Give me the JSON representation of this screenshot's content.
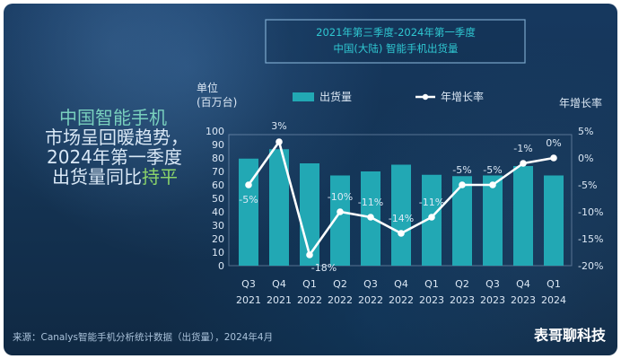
{
  "header": {
    "title_line_1": "2021年第三季度-2024年第一季度",
    "title_line_2": "中国(大陆) 智能手机出货量"
  },
  "callout": {
    "lines": [
      [
        {
          "text": "中国智能手机",
          "color": "#79d0be"
        }
      ],
      [
        {
          "text": "市场",
          "color": "#d9e8f6"
        },
        {
          "text": "呈回暖趋势，",
          "color": "#d9e8f6"
        }
      ],
      [
        {
          "text": "2024年第一季度",
          "color": "#d9e8f6"
        }
      ],
      [
        {
          "text": "出货量同比",
          "color": "#d9e8f6"
        },
        {
          "text": "持平",
          "color": "#8bd46a"
        }
      ]
    ]
  },
  "footer": {
    "source": "来源：Canalys智能手机分析统计数据（出货量），2024年4月",
    "watermark": "表哥聊科技"
  },
  "colors": {
    "bar": "#22a8b4",
    "line": "#ffffff",
    "text": "#dce8f5",
    "muted_text": "#aac2da",
    "callout_accent": "#79d0be",
    "highlight": "#8bd46a",
    "title_teal": "#2fc7d1"
  },
  "chart_data": {
    "type": "bar",
    "categories": [
      [
        "Q3",
        "2021"
      ],
      [
        "Q4",
        "2021"
      ],
      [
        "Q1",
        "2022"
      ],
      [
        "Q2",
        "2022"
      ],
      [
        "Q3",
        "2022"
      ],
      [
        "Q4",
        "2022"
      ],
      [
        "Q1",
        "2023"
      ],
      [
        "Q2",
        "2023"
      ],
      [
        "Q3",
        "2023"
      ],
      [
        "Q4",
        "2023"
      ],
      [
        "Q1",
        "2024"
      ]
    ],
    "series": [
      {
        "name": "出货量",
        "type": "bar",
        "values": [
          79.5,
          86.5,
          76.0,
          67.0,
          70.0,
          75.0,
          67.5,
          66.5,
          67.0,
          74.0,
          67.0
        ]
      },
      {
        "name": "年增长率",
        "type": "line",
        "values": [
          -5,
          3,
          -18,
          -10,
          -11,
          -14,
          -11,
          -5,
          -5,
          -1,
          0
        ],
        "labels": [
          "-5%",
          "3%",
          "-18%",
          "-10%",
          "-11%",
          "-14%",
          "-11%",
          "-5%",
          "-5%",
          "-1%",
          "0%"
        ]
      }
    ],
    "left_axis": {
      "label_line_1": "单位",
      "label_line_2": "(百万台)",
      "min": 0,
      "max": 100,
      "ticks": [
        0,
        10,
        20,
        30,
        40,
        50,
        60,
        70,
        80,
        90,
        100
      ]
    },
    "right_axis": {
      "label": "年增长率",
      "min": -20,
      "max": 5,
      "ticks": [
        "5%",
        "0%",
        "-5%",
        "-10%",
        "-15%",
        "-20%"
      ]
    },
    "legend": {
      "placement": "top",
      "items": [
        "出货量",
        "年增长率"
      ]
    },
    "grid": false
  }
}
